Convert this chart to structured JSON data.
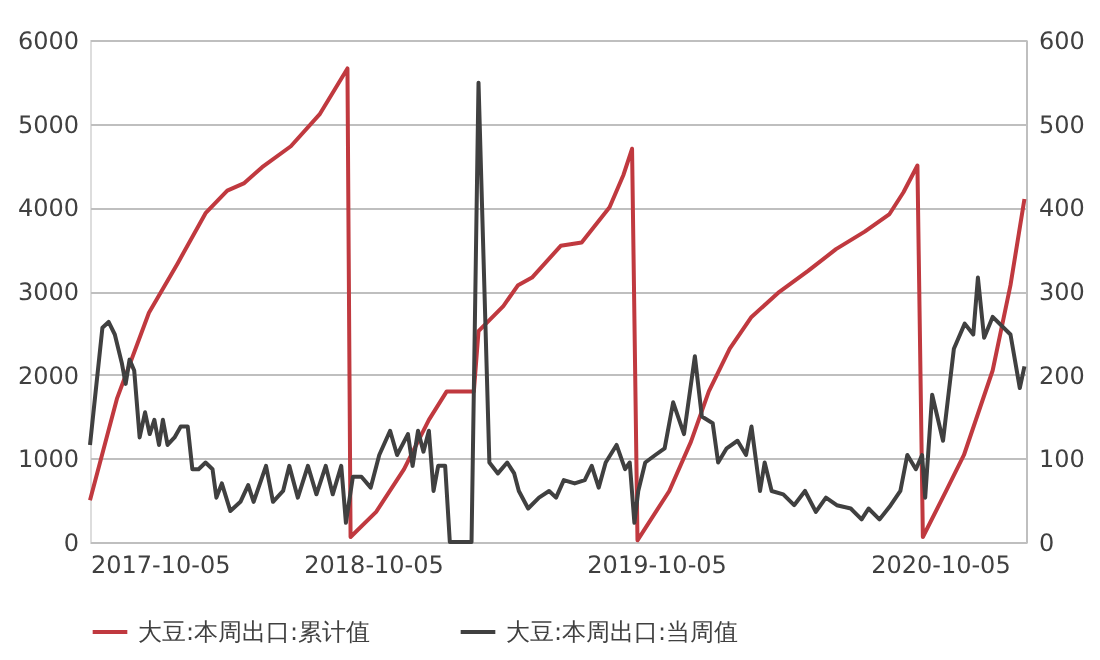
{
  "chart_data": {
    "type": "line",
    "xlim": [
      "2017-10-05",
      "2021-01-24"
    ],
    "xticks": [
      "2017-10-05",
      "2018-10-05",
      "2019-10-05",
      "2020-10-05"
    ],
    "ylim": [
      0,
      6000
    ],
    "yticks": [
      0,
      1000,
      2000,
      3000,
      4000,
      5000,
      6000
    ],
    "y2lim": [
      0,
      600
    ],
    "y2ticks": [
      0,
      100,
      200,
      300,
      400,
      500,
      600
    ],
    "grid": "y",
    "legend": "bottom",
    "marker": "none",
    "line_style": "solid",
    "series": [
      {
        "name": "大豆:本周出口:累计值",
        "color": "#c0393f",
        "axis": "y",
        "x": [
          "2017-10-05",
          "2017-11-09",
          "2017-12-20",
          "2018-01-26",
          "2018-03-03",
          "2018-03-31",
          "2018-04-22",
          "2018-05-15",
          "2018-06-21",
          "2018-07-28",
          "2018-09-02",
          "2018-09-06",
          "2018-10-09",
          "2018-11-14",
          "2018-12-16",
          "2019-01-08",
          "2019-02-12",
          "2019-02-18",
          "2019-03-22",
          "2019-04-10",
          "2019-04-28",
          "2019-06-04",
          "2019-07-01",
          "2019-08-06",
          "2019-08-24",
          "2019-09-04",
          "2019-09-11",
          "2019-10-22",
          "2019-11-19",
          "2019-12-12",
          "2020-01-08",
          "2020-02-05",
          "2020-03-12",
          "2020-04-18",
          "2020-05-24",
          "2020-06-30",
          "2020-08-01",
          "2020-08-19",
          "2020-09-06",
          "2020-09-13",
          "2020-10-13",
          "2020-11-05",
          "2020-12-12",
          "2021-01-04",
          "2021-01-22"
        ],
        "values": [
          500,
          1720,
          2740,
          3330,
          3930,
          4200,
          4290,
          4480,
          4730,
          5110,
          5660,
          60,
          360,
          870,
          1460,
          1800,
          1800,
          2520,
          2820,
          3070,
          3160,
          3540,
          3580,
          4000,
          4390,
          4700,
          20,
          610,
          1200,
          1800,
          2310,
          2690,
          2990,
          3240,
          3500,
          3710,
          3920,
          4180,
          4500,
          60,
          610,
          1040,
          2050,
          3070,
          4100
        ]
      },
      {
        "name": "大豆:本周出口:当周值",
        "color": "#404040",
        "axis": "y2",
        "x": [
          "2017-10-05",
          "2017-10-21",
          "2017-10-29",
          "2017-11-06",
          "2017-11-15",
          "2017-11-20",
          "2017-11-25",
          "2017-12-01",
          "2017-12-08",
          "2017-12-15",
          "2017-12-21",
          "2017-12-27",
          "2018-01-02",
          "2018-01-07",
          "2018-01-13",
          "2018-01-22",
          "2018-01-30",
          "2018-02-08",
          "2018-02-14",
          "2018-02-22",
          "2018-03-03",
          "2018-03-12",
          "2018-03-17",
          "2018-03-24",
          "2018-04-04",
          "2018-04-17",
          "2018-04-27",
          "2018-05-04",
          "2018-05-20",
          "2018-05-29",
          "2018-06-11",
          "2018-06-19",
          "2018-06-30",
          "2018-07-13",
          "2018-07-24",
          "2018-08-05",
          "2018-08-14",
          "2018-08-25",
          "2018-08-31",
          "2018-09-09",
          "2018-09-20",
          "2018-10-02",
          "2018-10-13",
          "2018-10-27",
          "2018-11-05",
          "2018-11-19",
          "2018-11-25",
          "2018-12-02",
          "2018-12-09",
          "2018-12-16",
          "2018-12-22",
          "2018-12-28",
          "2019-01-06",
          "2019-01-12",
          "2019-02-09",
          "2019-02-18",
          "2019-03-04",
          "2019-03-15",
          "2019-03-27",
          "2019-04-05",
          "2019-04-11",
          "2019-04-23",
          "2019-05-07",
          "2019-05-20",
          "2019-05-29",
          "2019-06-08",
          "2019-06-22",
          "2019-07-05",
          "2019-07-14",
          "2019-07-23",
          "2019-08-01",
          "2019-08-15",
          "2019-08-26",
          "2019-09-01",
          "2019-09-07",
          "2019-09-12",
          "2019-09-21",
          "2019-10-04",
          "2019-10-16",
          "2019-10-27",
          "2019-11-10",
          "2019-11-24",
          "2019-12-03",
          "2019-12-17",
          "2019-12-24",
          "2020-01-04",
          "2020-01-18",
          "2020-01-29",
          "2020-02-05",
          "2020-02-16",
          "2020-02-22",
          "2020-03-02",
          "2020-03-17",
          "2020-03-31",
          "2020-04-14",
          "2020-04-28",
          "2020-05-11",
          "2020-05-25",
          "2020-06-12",
          "2020-06-26",
          "2020-07-05",
          "2020-07-19",
          "2020-08-01",
          "2020-08-15",
          "2020-08-24",
          "2020-09-04",
          "2020-09-12",
          "2020-09-16",
          "2020-09-25",
          "2020-10-09",
          "2020-10-23",
          "2020-11-06",
          "2020-11-17",
          "2020-11-23",
          "2020-12-01",
          "2020-12-12",
          "2021-01-04",
          "2021-01-16",
          "2021-01-22"
        ],
        "values": [
          116,
          256,
          263,
          248,
          214,
          189,
          218,
          205,
          125,
          155,
          129,
          146,
          116,
          146,
          116,
          125,
          138,
          138,
          87,
          87,
          95,
          87,
          53,
          70,
          37,
          48,
          68,
          48,
          91,
          48,
          61,
          91,
          53,
          91,
          57,
          91,
          57,
          91,
          23,
          78,
          78,
          65,
          104,
          133,
          104,
          129,
          91,
          133,
          108,
          133,
          61,
          91,
          91,
          0,
          0,
          549,
          95,
          82,
          95,
          82,
          61,
          40,
          53,
          61,
          53,
          74,
          70,
          74,
          91,
          65,
          95,
          116,
          87,
          95,
          23,
          61,
          95,
          104,
          112,
          167,
          129,
          222,
          150,
          142,
          95,
          112,
          121,
          104,
          138,
          61,
          95,
          61,
          57,
          44,
          61,
          36,
          53,
          44,
          40,
          27,
          40,
          27,
          42,
          61,
          104,
          87,
          104,
          53,
          176,
          121,
          231,
          261,
          248,
          316,
          244,
          269,
          248,
          184,
          210
        ]
      }
    ]
  }
}
